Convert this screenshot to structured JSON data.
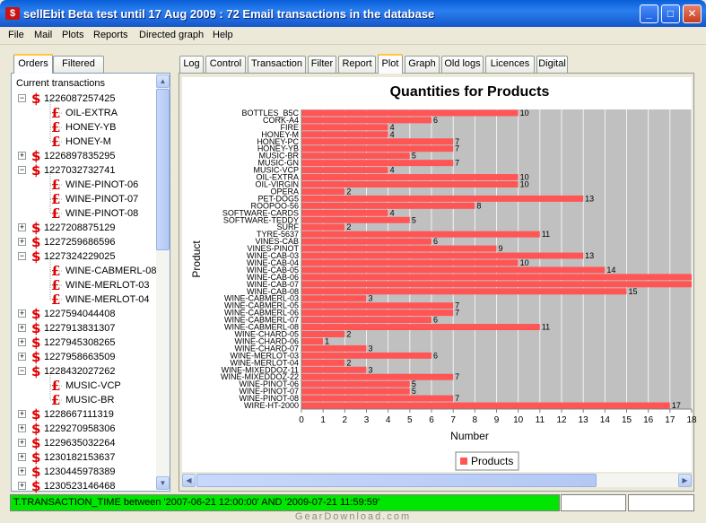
{
  "window": {
    "title": "sellEbit Beta test until 17 Aug 2009 : 72 Email transactions in the database",
    "controls": {
      "minimize": "_",
      "maximize": "□",
      "close": "✕"
    },
    "title_icon": "$"
  },
  "menu": [
    "File",
    "Mail",
    "Plots",
    "Reports",
    "Directed graph",
    "Help"
  ],
  "left_tabs": [
    {
      "label": "Orders",
      "active": true
    },
    {
      "label": "Filtered",
      "active": false
    }
  ],
  "tree": {
    "root_label": "Current transactions",
    "rows": [
      {
        "type": "order",
        "label": "1226087257425",
        "expanded": true
      },
      {
        "type": "product",
        "label": "OIL-EXTRA"
      },
      {
        "type": "product",
        "label": "HONEY-YB"
      },
      {
        "type": "product",
        "label": "HONEY-M"
      },
      {
        "type": "order",
        "label": "1226897835295",
        "expanded": false
      },
      {
        "type": "order",
        "label": "1227032732741",
        "expanded": true
      },
      {
        "type": "product",
        "label": "WINE-PINOT-06"
      },
      {
        "type": "product",
        "label": "WINE-PINOT-07"
      },
      {
        "type": "product",
        "label": "WINE-PINOT-08"
      },
      {
        "type": "order",
        "label": "1227208875129",
        "expanded": false
      },
      {
        "type": "order",
        "label": "1227259686596",
        "expanded": false
      },
      {
        "type": "order",
        "label": "1227324229025",
        "expanded": true
      },
      {
        "type": "product",
        "label": "WINE-CABMERL-08"
      },
      {
        "type": "product",
        "label": "WINE-MERLOT-03"
      },
      {
        "type": "product",
        "label": "WINE-MERLOT-04"
      },
      {
        "type": "order",
        "label": "1227594044408",
        "expanded": false
      },
      {
        "type": "order",
        "label": "1227913831307",
        "expanded": false
      },
      {
        "type": "order",
        "label": "1227945308265",
        "expanded": false
      },
      {
        "type": "order",
        "label": "1227958663509",
        "expanded": false
      },
      {
        "type": "order",
        "label": "1228432027262",
        "expanded": true
      },
      {
        "type": "product",
        "label": "MUSIC-VCP"
      },
      {
        "type": "product",
        "label": "MUSIC-BR"
      },
      {
        "type": "order",
        "label": "1228667111319",
        "expanded": false
      },
      {
        "type": "order",
        "label": "1229270958306",
        "expanded": false
      },
      {
        "type": "order",
        "label": "1229635032264",
        "expanded": false
      },
      {
        "type": "order",
        "label": "1230182153637",
        "expanded": false
      },
      {
        "type": "order",
        "label": "1230445978389",
        "expanded": false
      },
      {
        "type": "order",
        "label": "1230523146468",
        "expanded": false
      }
    ]
  },
  "right_tabs": [
    {
      "label": "Log",
      "active": false
    },
    {
      "label": "Control",
      "active": false
    },
    {
      "label": "Transaction",
      "active": false
    },
    {
      "label": "Filter",
      "active": false
    },
    {
      "label": "Report",
      "active": false
    },
    {
      "label": "Plot",
      "active": true
    },
    {
      "label": "Graph",
      "active": false
    },
    {
      "label": "Old logs",
      "active": false
    },
    {
      "label": "Licences",
      "active": false
    },
    {
      "label": "Digital",
      "active": false
    }
  ],
  "chart_data": {
    "type": "bar",
    "orientation": "horizontal",
    "title": "Quantities for Products",
    "xlabel": "Number",
    "ylabel": "Product",
    "xlim": [
      0,
      18
    ],
    "xticks": [
      0,
      1,
      2,
      3,
      4,
      5,
      6,
      7,
      8,
      9,
      10,
      11,
      12,
      13,
      14,
      15,
      16,
      17,
      18
    ],
    "grid": true,
    "legend_position": "bottom-center",
    "bar_color": "#ff5555",
    "plot_background": "#c0c0c0",
    "series": [
      {
        "name": "Products",
        "categories": [
          "BOTTLES_B5C",
          "CORK-A4",
          "FIRE",
          "HONEY-M",
          "HONEY-PC",
          "HONEY-YB",
          "MUSIC-BR",
          "MUSIC-GN",
          "MUSIC-VCP",
          "OIL-EXTRA",
          "OIL-VIRGIN",
          "OPERA",
          "PET-DOG5",
          "ROOPOO-56",
          "SOFTWARE-CARDS",
          "SOFTWARE-TEDDY",
          "SURF",
          "TYRE-5637",
          "VINES-CAB",
          "VINES-PINOT",
          "WINE-CAB-03",
          "WINE-CAB-04",
          "WINE-CAB-05",
          "WINE-CAB-06",
          "WINE-CAB-07",
          "WINE-CAB-08",
          "WINE-CABMERL-03",
          "WINE-CABMERL-05",
          "WINE-CABMERL-06",
          "WINE-CABMERL-07",
          "WINE-CABMERL-08",
          "WINE-CHARD-05",
          "WINE-CHARD-06",
          "WINE-CHARD-07",
          "WINE-MERLOT-03",
          "WINE-MERLOT-04",
          "WINE-MIXEDDOZ-11",
          "WINE-MIXEDDOZ-22",
          "WINE-PINOT-06",
          "WINE-PINOT-07",
          "WINE-PINOT-08",
          "WIRE-HT-2000"
        ],
        "values": [
          10,
          6,
          4,
          4,
          7,
          7,
          5,
          7,
          4,
          10,
          10,
          2,
          13,
          8,
          4,
          5,
          2,
          11,
          6,
          9,
          13,
          10,
          14,
          18,
          18,
          15,
          3,
          7,
          7,
          6,
          11,
          2,
          1,
          3,
          6,
          2,
          3,
          7,
          5,
          5,
          7,
          17
        ]
      }
    ],
    "data_labels": [
      "10",
      "6",
      "4",
      "4",
      "7",
      "7",
      "5",
      "7",
      "4",
      "10",
      "10",
      "2",
      "13",
      "8",
      "4",
      "5",
      "2",
      "11",
      "6",
      "9",
      "13",
      "10",
      "14",
      "",
      "",
      "15",
      "3",
      "7",
      "7",
      "6",
      "11",
      "2",
      "1",
      "3",
      "6",
      "2",
      "3",
      "7",
      "5",
      "5",
      "7",
      "17"
    ]
  },
  "status": {
    "message": "T.TRANSACTION_TIME between '2007-06-21 12:00:00' AND '2009-07-21 11:59:59'"
  },
  "watermark": "GearDownload.com",
  "icons": {
    "order": "dollar-icon",
    "product": "pound-icon",
    "order_glyph": "$",
    "product_glyph": "£",
    "expand_glyph": "+",
    "collapse_glyph": "−"
  }
}
